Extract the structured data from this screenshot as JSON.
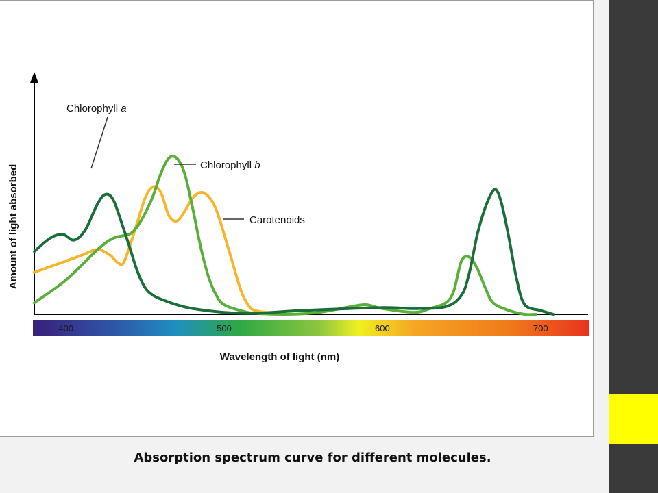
{
  "slide": {
    "caption": "Absorption spectrum curve for different molecules.",
    "accent_color": "#ffff00",
    "sidebar_color": "#3a3a3a"
  },
  "chart_data": {
    "type": "line",
    "title": "",
    "xlabel": "Wavelength of light (nm)",
    "ylabel": "Amount of light absorbed",
    "xlim": [
      380,
      730
    ],
    "ylim": [
      0,
      1
    ],
    "x_ticks": [
      400,
      500,
      600,
      700
    ],
    "y_ticks_shown": false,
    "grid": false,
    "color_bar": {
      "range": [
        380,
        730
      ],
      "stops": [
        {
          "nm": 380,
          "color": "#3a1f7a"
        },
        {
          "nm": 430,
          "color": "#2e55a8"
        },
        {
          "nm": 470,
          "color": "#1f8fc0"
        },
        {
          "nm": 510,
          "color": "#2ea844"
        },
        {
          "nm": 560,
          "color": "#8cc63f"
        },
        {
          "nm": 585,
          "color": "#f0f020"
        },
        {
          "nm": 620,
          "color": "#f5a623"
        },
        {
          "nm": 680,
          "color": "#f07a1a"
        },
        {
          "nm": 730,
          "color": "#e8321e"
        }
      ]
    },
    "series": [
      {
        "name": "Chlorophyll a",
        "name_italic_part": "a",
        "color": "#1b6e3a",
        "x": [
          380,
          390,
          398,
          405,
          412,
          420,
          425,
          430,
          436,
          440,
          445,
          450,
          455,
          460,
          470,
          480,
          500,
          520,
          550,
          600,
          620,
          640,
          650,
          655,
          660,
          665,
          670,
          673,
          676,
          680,
          685,
          690,
          700,
          708
        ],
        "y": [
          0.33,
          0.4,
          0.42,
          0.39,
          0.44,
          0.58,
          0.63,
          0.6,
          0.46,
          0.36,
          0.23,
          0.14,
          0.1,
          0.08,
          0.05,
          0.03,
          0.01,
          0.005,
          0.02,
          0.035,
          0.03,
          0.04,
          0.1,
          0.22,
          0.42,
          0.56,
          0.65,
          0.64,
          0.56,
          0.4,
          0.18,
          0.05,
          0.02,
          0.0
        ]
      },
      {
        "name": "Chlorophyll b",
        "name_italic_part": "b",
        "color": "#5aae3a",
        "x": [
          380,
          400,
          420,
          430,
          440,
          445,
          450,
          455,
          460,
          465,
          470,
          475,
          480,
          485,
          490,
          495,
          500,
          510,
          520,
          540,
          560,
          580,
          590,
          600,
          620,
          630,
          640,
          645,
          650,
          655,
          660,
          665,
          670,
          680,
          690,
          697
        ],
        "y": [
          0.06,
          0.18,
          0.34,
          0.4,
          0.42,
          0.46,
          0.53,
          0.62,
          0.74,
          0.82,
          0.82,
          0.74,
          0.56,
          0.36,
          0.2,
          0.1,
          0.05,
          0.02,
          0.005,
          0.0,
          0.01,
          0.04,
          0.05,
          0.03,
          0.01,
          0.03,
          0.06,
          0.12,
          0.28,
          0.3,
          0.24,
          0.14,
          0.06,
          0.02,
          0.0,
          0.0
        ]
      },
      {
        "name": "Carotenoids",
        "name_italic_part": "",
        "color": "#f7b52c",
        "x": [
          380,
          400,
          410,
          420,
          428,
          433,
          437,
          445,
          450,
          455,
          460,
          465,
          470,
          475,
          480,
          485,
          490,
          495,
          500,
          505,
          510,
          513,
          517,
          522,
          527,
          530
        ],
        "y": [
          0.22,
          0.28,
          0.31,
          0.34,
          0.31,
          0.27,
          0.28,
          0.48,
          0.61,
          0.67,
          0.64,
          0.52,
          0.49,
          0.54,
          0.61,
          0.64,
          0.62,
          0.55,
          0.42,
          0.28,
          0.14,
          0.08,
          0.03,
          0.015,
          0.01,
          0.01
        ]
      }
    ]
  }
}
